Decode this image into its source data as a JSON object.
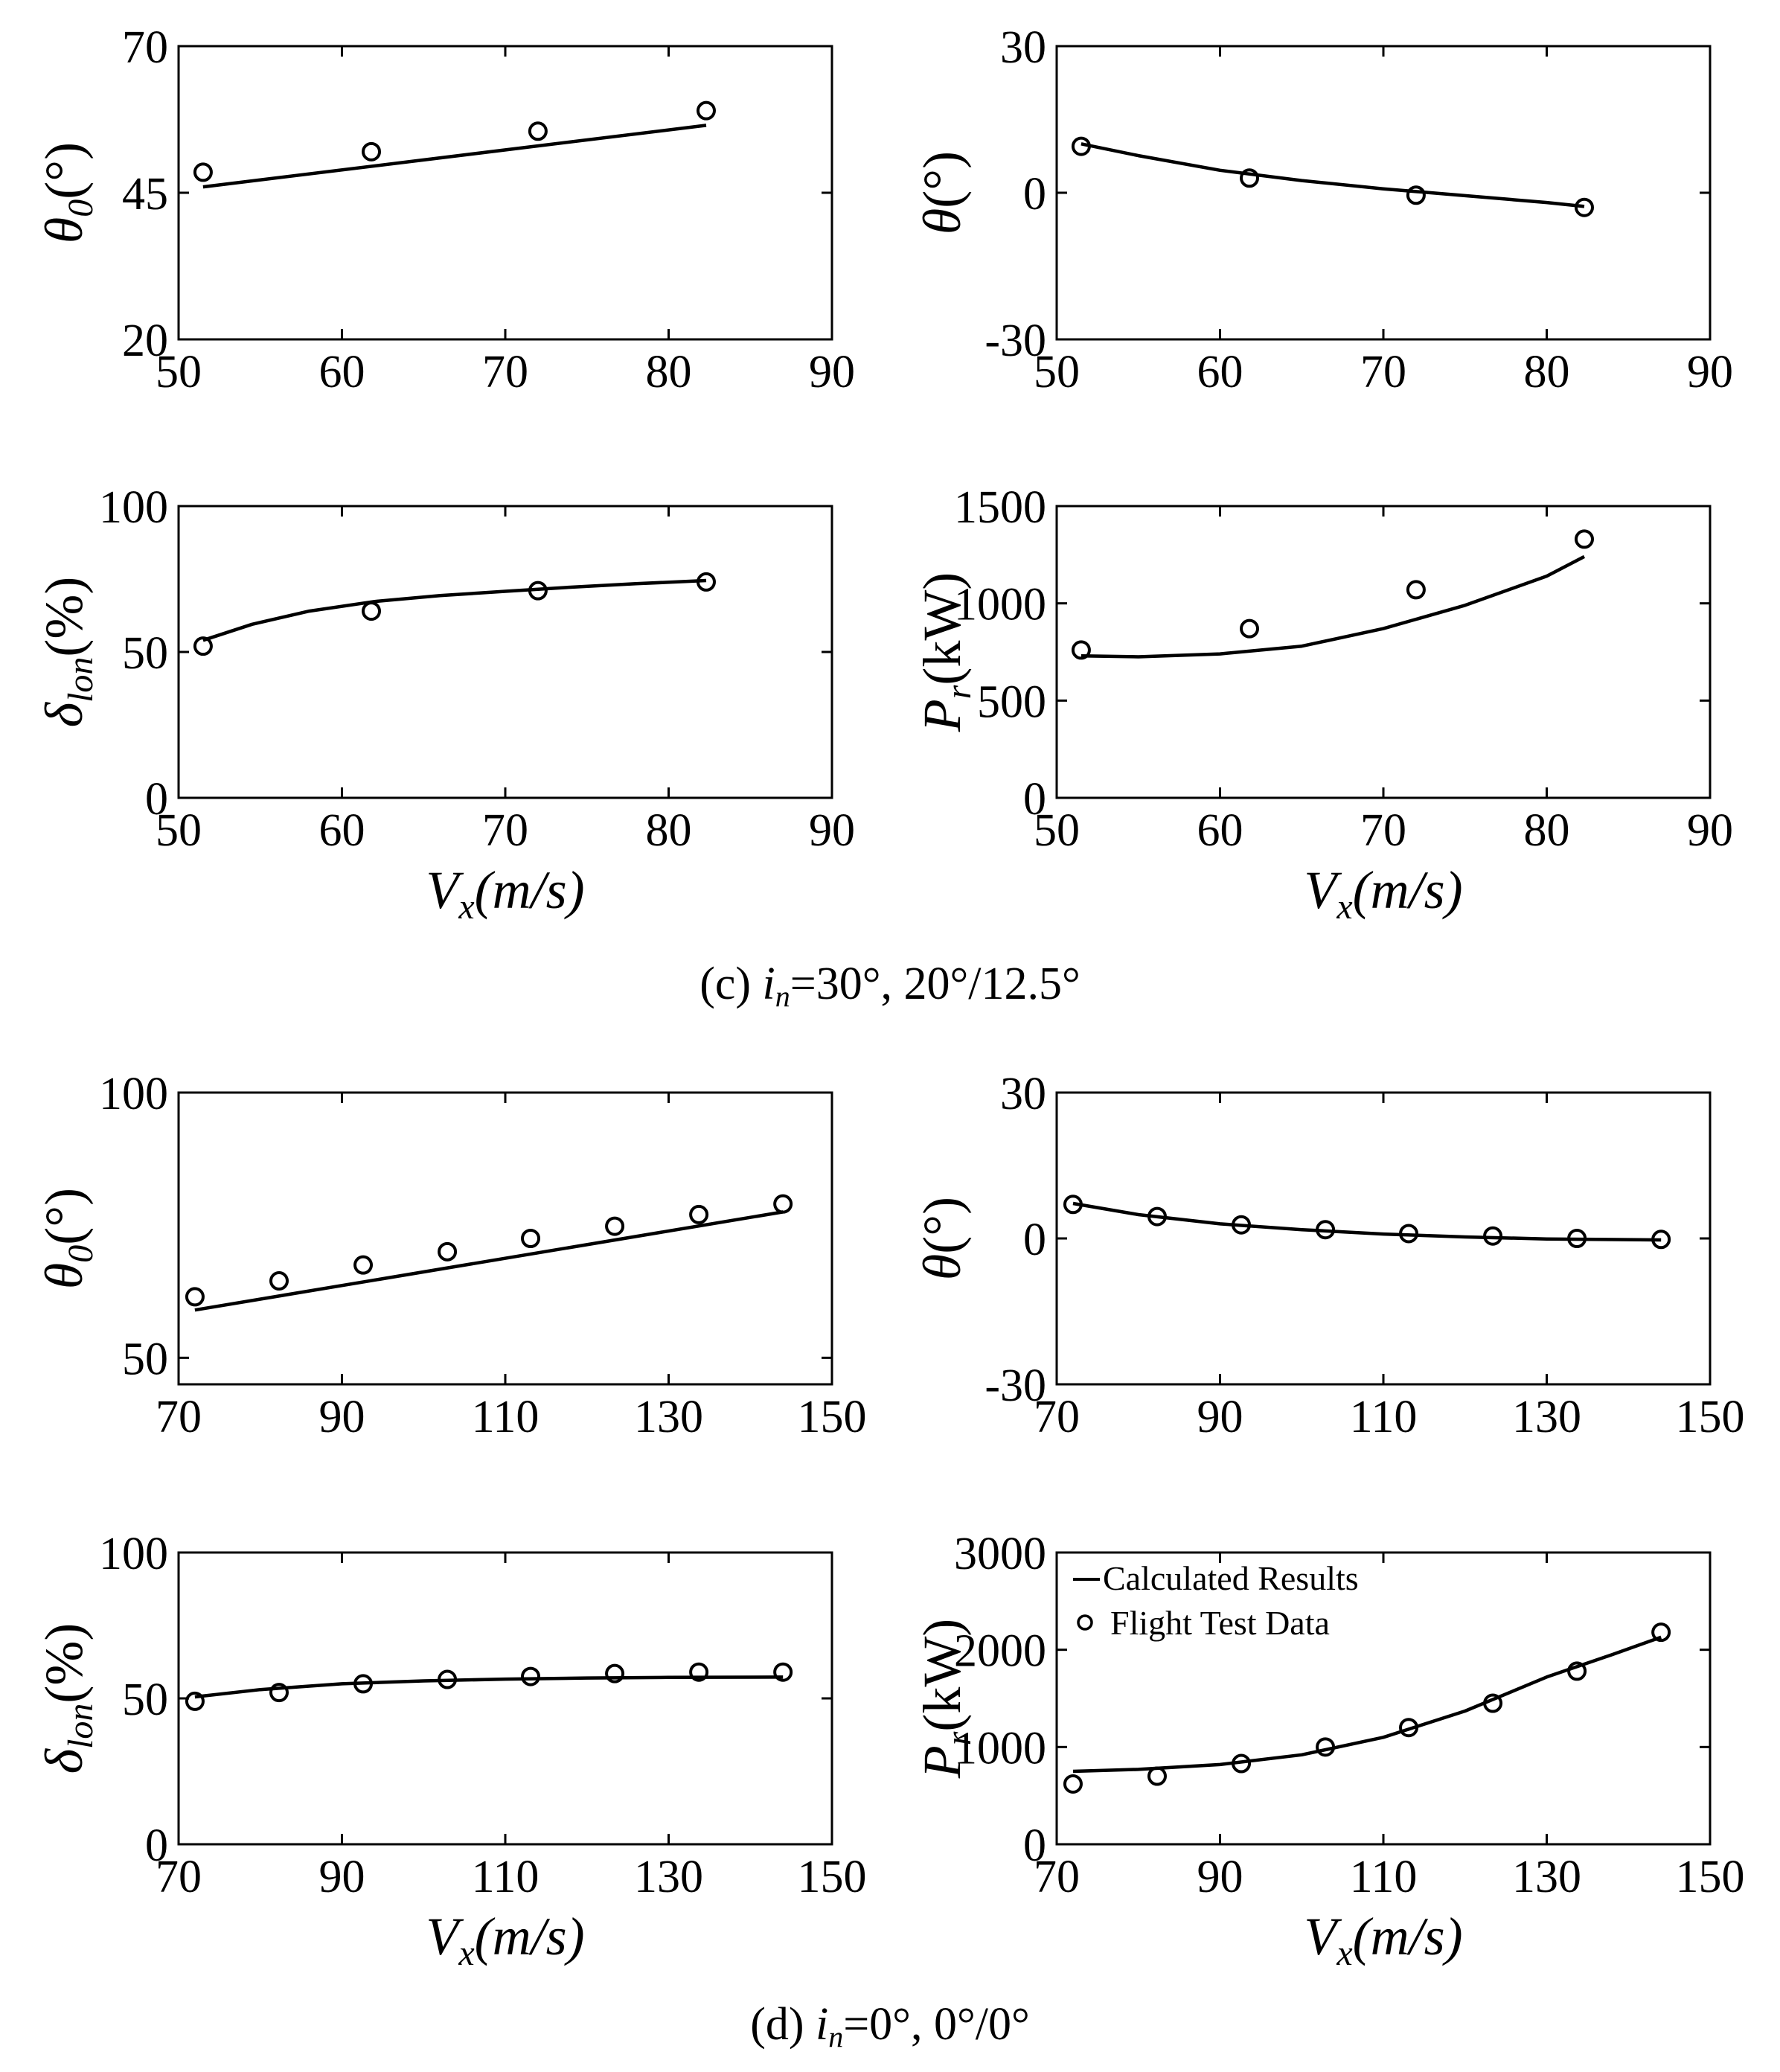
{
  "figure_captions": [
    {
      "prefix": "(c) ",
      "var": "i",
      "sub": "n",
      "rest": "=30°, 20°/12.5°"
    },
    {
      "prefix": "(d) ",
      "var": "i",
      "sub": "n",
      "rest": "=0°, 0°/0°"
    }
  ],
  "legend": {
    "line_label": "Calculated  Results",
    "marker_label": "Flight  Test Data"
  },
  "colors": {
    "ink": "#000000",
    "background": "#ffffff"
  },
  "chart_data": [
    {
      "id": "c-theta0",
      "type": "line",
      "group": "c",
      "ylabel": {
        "main": "θ",
        "sub": "0",
        "unit": "(°)"
      },
      "xlabel": null,
      "xlim": [
        50,
        90
      ],
      "xticks": [
        50,
        60,
        70,
        80,
        90
      ],
      "ylim": [
        20,
        70
      ],
      "yticks": [
        20,
        45,
        70
      ],
      "series": [
        {
          "name": "Calculated Results",
          "kind": "line",
          "x": [
            51.5,
            82.3
          ],
          "y": [
            46.0,
            56.5
          ]
        },
        {
          "name": "Flight Test Data",
          "kind": "marker",
          "x": [
            51.5,
            61.8,
            72.0,
            82.3
          ],
          "y": [
            48.5,
            52.0,
            55.5,
            59.0
          ]
        }
      ]
    },
    {
      "id": "c-theta",
      "type": "line",
      "group": "c",
      "ylabel": {
        "main": "θ",
        "sub": "",
        "unit": "(°)"
      },
      "xlabel": null,
      "xlim": [
        50,
        90
      ],
      "xticks": [
        50,
        60,
        70,
        80,
        90
      ],
      "ylim": [
        -30,
        30
      ],
      "yticks": [
        -30,
        0,
        30
      ],
      "series": [
        {
          "name": "Calculated Results",
          "kind": "line",
          "x": [
            51.5,
            55,
            60,
            65,
            70,
            75,
            80,
            82.3
          ],
          "y": [
            10.0,
            7.6,
            4.6,
            2.5,
            0.8,
            -0.6,
            -2.0,
            -2.8
          ]
        },
        {
          "name": "Flight Test Data",
          "kind": "marker",
          "x": [
            51.5,
            61.8,
            72.0,
            82.3
          ],
          "y": [
            9.5,
            3.0,
            -0.5,
            -3.0
          ]
        }
      ]
    },
    {
      "id": "c-dlon",
      "type": "line",
      "group": "c",
      "ylabel": {
        "main": "δ",
        "sub": "lon",
        "unit": "(%)"
      },
      "xlabel": {
        "main": "V",
        "sub": "x",
        "unit": "(m/s)"
      },
      "xlim": [
        50,
        90
      ],
      "xticks": [
        50,
        60,
        70,
        80,
        90
      ],
      "ylim": [
        0,
        100
      ],
      "yticks": [
        0,
        50,
        100
      ],
      "series": [
        {
          "name": "Calculated Results",
          "kind": "line",
          "x": [
            51.5,
            54.5,
            58,
            62,
            66,
            70,
            74,
            78,
            82.3
          ],
          "y": [
            54,
            59.5,
            64,
            67.3,
            69.3,
            70.8,
            72.2,
            73.4,
            74.5
          ]
        },
        {
          "name": "Flight Test Data",
          "kind": "marker",
          "x": [
            51.5,
            61.8,
            72.0,
            82.3
          ],
          "y": [
            52,
            64,
            71,
            74
          ]
        }
      ]
    },
    {
      "id": "c-pr",
      "type": "line",
      "group": "c",
      "ylabel": {
        "main": "P",
        "sub": "r",
        "unit": "(kW)"
      },
      "xlabel": {
        "main": "V",
        "sub": "x",
        "unit": "(m/s)"
      },
      "xlim": [
        50,
        90
      ],
      "xticks": [
        50,
        60,
        70,
        80,
        90
      ],
      "ylim": [
        0,
        1500
      ],
      "yticks": [
        0,
        500,
        1000,
        1500
      ],
      "series": [
        {
          "name": "Calculated Results",
          "kind": "line",
          "x": [
            51.5,
            55,
            60,
            65,
            70,
            75,
            80,
            82.3
          ],
          "y": [
            730,
            725,
            740,
            780,
            870,
            990,
            1140,
            1240
          ]
        },
        {
          "name": "Flight Test Data",
          "kind": "marker",
          "x": [
            51.5,
            61.8,
            72.0,
            82.3
          ],
          "y": [
            760,
            870,
            1070,
            1330
          ]
        }
      ]
    },
    {
      "id": "d-theta0",
      "type": "line",
      "group": "d",
      "ylabel": {
        "main": "θ",
        "sub": "0",
        "unit": "(°)"
      },
      "xlabel": null,
      "xlim": [
        70,
        150
      ],
      "xticks": [
        70,
        90,
        110,
        130,
        150
      ],
      "ylim": [
        45,
        100
      ],
      "yticks": [
        50,
        100
      ],
      "series": [
        {
          "name": "Calculated Results",
          "kind": "line",
          "x": [
            72,
            144
          ],
          "y": [
            59.0,
            77.5
          ]
        },
        {
          "name": "Flight Test Data",
          "kind": "marker",
          "x": [
            72,
            82.3,
            92.6,
            102.9,
            113.1,
            123.4,
            133.7,
            144
          ],
          "y": [
            61.5,
            64.5,
            67.5,
            70.0,
            72.5,
            74.8,
            77.0,
            79.0
          ]
        }
      ]
    },
    {
      "id": "d-theta",
      "type": "line",
      "group": "d",
      "ylabel": {
        "main": "θ",
        "sub": "",
        "unit": "(°)"
      },
      "xlabel": null,
      "xlim": [
        70,
        150
      ],
      "xticks": [
        70,
        90,
        110,
        130,
        150
      ],
      "ylim": [
        -30,
        30
      ],
      "yticks": [
        -30,
        0,
        30
      ],
      "series": [
        {
          "name": "Calculated Results",
          "kind": "line",
          "x": [
            72,
            80,
            90,
            100,
            110,
            120,
            130,
            144
          ],
          "y": [
            7.2,
            4.9,
            3.0,
            1.8,
            0.9,
            0.3,
            -0.1,
            -0.3
          ]
        },
        {
          "name": "Flight Test Data",
          "kind": "marker",
          "x": [
            72,
            82.3,
            92.6,
            102.9,
            113.1,
            123.4,
            133.7,
            144
          ],
          "y": [
            7.0,
            4.5,
            2.8,
            1.8,
            1.0,
            0.5,
            0.0,
            -0.2
          ]
        }
      ]
    },
    {
      "id": "d-dlon",
      "type": "line",
      "group": "d",
      "ylabel": {
        "main": "δ",
        "sub": "lon",
        "unit": "(%)"
      },
      "xlabel": {
        "main": "V",
        "sub": "x",
        "unit": "(m/s)"
      },
      "xlim": [
        70,
        150
      ],
      "xticks": [
        70,
        90,
        110,
        130,
        150
      ],
      "ylim": [
        0,
        100
      ],
      "yticks": [
        0,
        50,
        100
      ],
      "series": [
        {
          "name": "Calculated Results",
          "kind": "line",
          "x": [
            72,
            80,
            90,
            100,
            110,
            120,
            130,
            144
          ],
          "y": [
            50.5,
            53.0,
            55.0,
            56.0,
            56.6,
            57.0,
            57.2,
            57.3
          ]
        },
        {
          "name": "Flight Test Data",
          "kind": "marker",
          "x": [
            72,
            82.3,
            92.6,
            102.9,
            113.1,
            123.4,
            133.7,
            144
          ],
          "y": [
            49,
            52,
            55,
            56.5,
            57.5,
            58.5,
            59,
            59
          ]
        }
      ]
    },
    {
      "id": "d-pr",
      "type": "line",
      "group": "d",
      "ylabel": {
        "main": "P",
        "sub": "r",
        "unit": "(kW)"
      },
      "xlabel": {
        "main": "V",
        "sub": "x",
        "unit": "(m/s)"
      },
      "xlim": [
        70,
        150
      ],
      "xticks": [
        70,
        90,
        110,
        130,
        150
      ],
      "ylim": [
        0,
        3000
      ],
      "yticks": [
        0,
        1000,
        2000,
        3000
      ],
      "legend": true,
      "series": [
        {
          "name": "Calculated Results",
          "kind": "line",
          "x": [
            72,
            80,
            90,
            100,
            110,
            120,
            130,
            138,
            144
          ],
          "y": [
            750,
            770,
            820,
            920,
            1100,
            1370,
            1720,
            1950,
            2130
          ]
        },
        {
          "name": "Flight Test Data",
          "kind": "marker",
          "x": [
            72,
            82.3,
            92.6,
            102.9,
            113.1,
            123.4,
            133.7,
            144
          ],
          "y": [
            620,
            700,
            830,
            1000,
            1200,
            1450,
            1780,
            2180
          ]
        }
      ]
    }
  ]
}
